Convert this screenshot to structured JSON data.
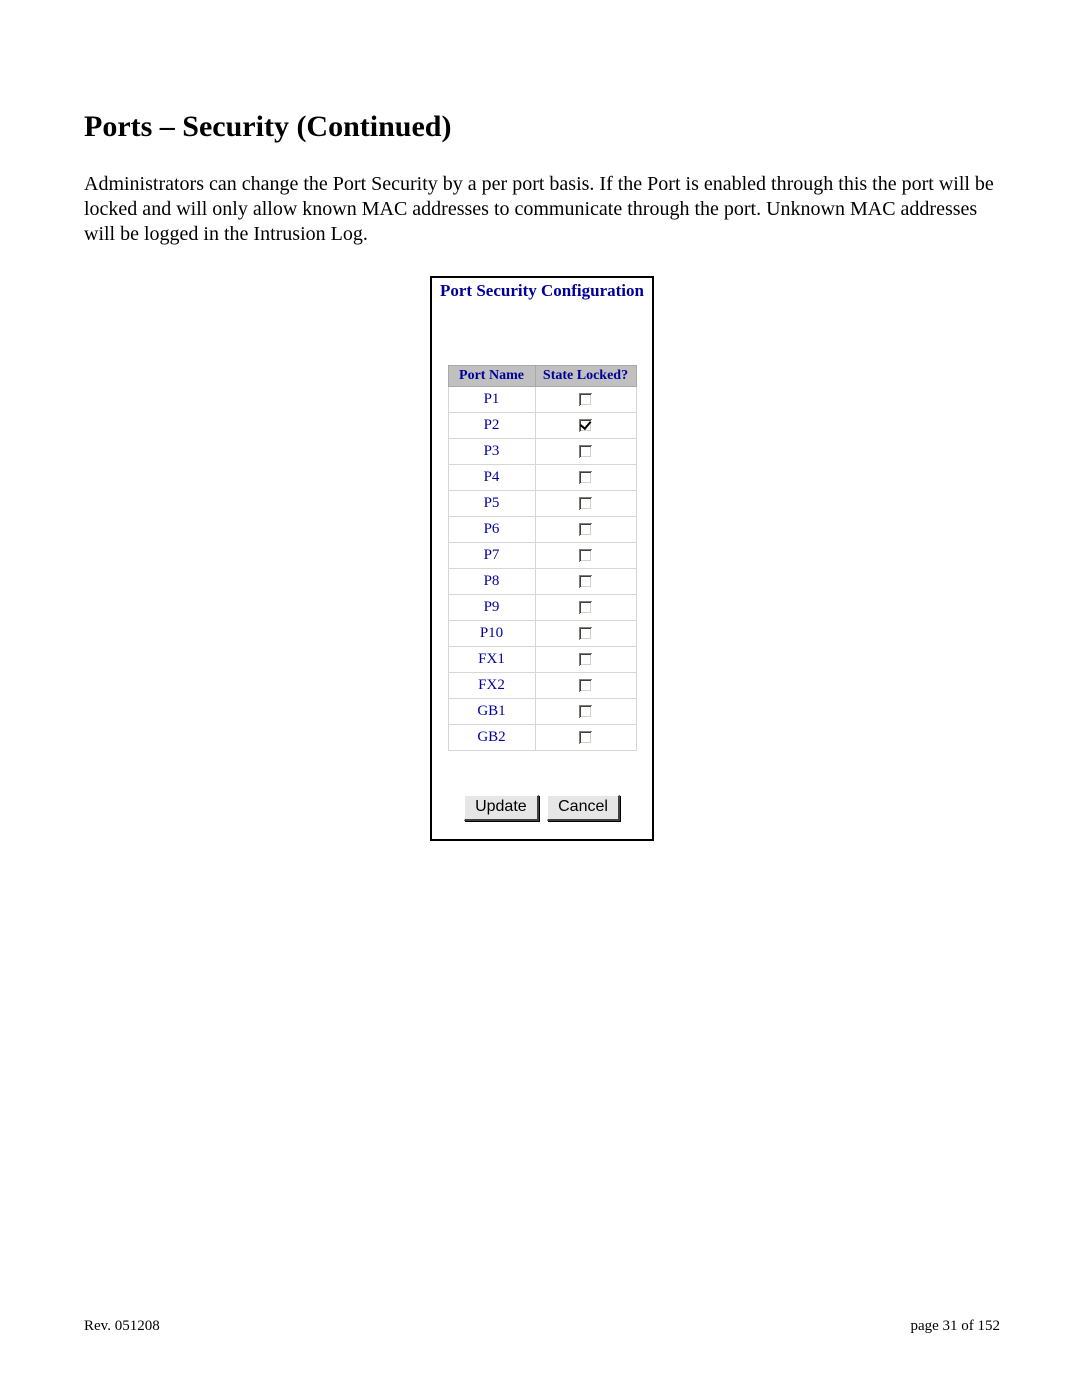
{
  "heading": "Ports – Security (Continued)",
  "description": "Administrators can change the Port Security by a per port basis.  If the Port is enabled through this the port will be locked and will only allow known MAC addresses to communicate through the port.  Unknown MAC addresses will be logged in the Intrusion Log.",
  "panel": {
    "title": "Port Security Configuration",
    "columns": {
      "name": "Port Name",
      "state": "State Locked?"
    },
    "rows": [
      {
        "name": "P1",
        "locked": false
      },
      {
        "name": "P2",
        "locked": true
      },
      {
        "name": "P3",
        "locked": false
      },
      {
        "name": "P4",
        "locked": false
      },
      {
        "name": "P5",
        "locked": false
      },
      {
        "name": "P6",
        "locked": false
      },
      {
        "name": "P7",
        "locked": false
      },
      {
        "name": "P8",
        "locked": false
      },
      {
        "name": "P9",
        "locked": false
      },
      {
        "name": "P10",
        "locked": false
      },
      {
        "name": "FX1",
        "locked": false
      },
      {
        "name": "FX2",
        "locked": false
      },
      {
        "name": "GB1",
        "locked": false
      },
      {
        "name": "GB2",
        "locked": false
      }
    ],
    "buttons": {
      "update": "Update",
      "cancel": "Cancel"
    }
  },
  "footer": {
    "rev": "Rev.  051208",
    "page": "page 31 of 152"
  },
  "colors": {
    "heading_color": "#000099",
    "th_bg": "#c0c0c0",
    "panel_border": "#000000",
    "page_bg": "#ffffff"
  }
}
